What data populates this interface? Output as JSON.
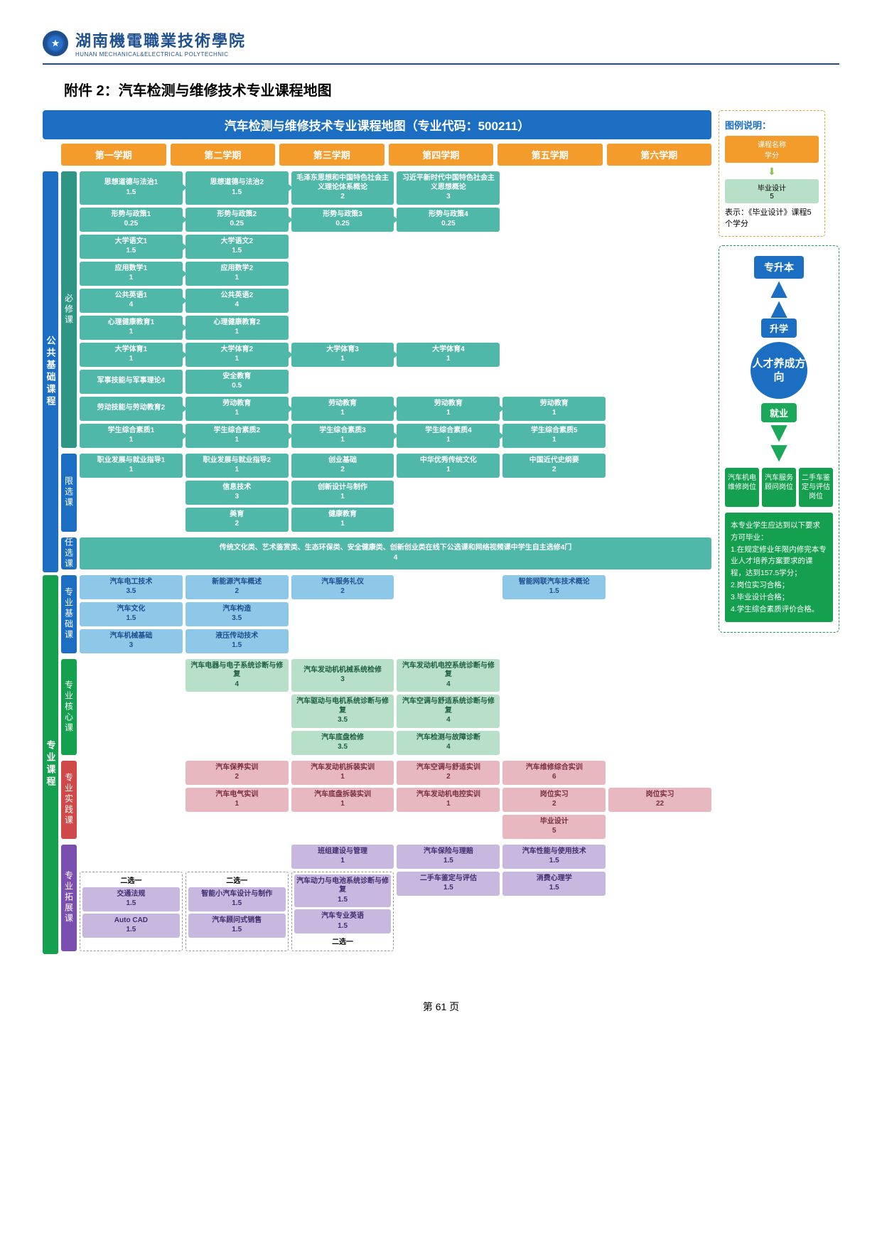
{
  "header": {
    "school_cn": "湖南機電職業技術學院",
    "school_en": "HUNAN MECHANICAL&ELECTRICAL POLYTECHNIC"
  },
  "doc_title": "附件 2：汽车检测与维修技术专业课程地图",
  "map_title": "汽车检测与维修技术专业课程地图（专业代码：500211）",
  "semesters": [
    "第一学期",
    "第二学期",
    "第三学期",
    "第四学期",
    "第五学期",
    "第六学期"
  ],
  "colors": {
    "blue": "#1b6ec2",
    "orange": "#f39c2c",
    "teal": "#4fb8a8",
    "teal_dark": "#2f9686",
    "lightblue": "#8ec8e8",
    "mint": "#b8e0c8",
    "pink": "#e8b8c0",
    "lilac": "#c8b8e0",
    "green": "#15a050",
    "green2": "#1ba85a",
    "purple": "#7a4fb0",
    "red": "#d04848"
  },
  "rails": {
    "public": "公共基础课程",
    "prof": "专业课程",
    "req": "必修课",
    "lim": "限选课",
    "opt": "任选课",
    "base": "专业基础课",
    "core": "专业核心课",
    "prac": "专业实践课",
    "ext": "专业拓展课"
  },
  "required": [
    [
      {
        "n": "思想道德与法治1",
        "c": "1.5",
        "a": 1
      },
      {
        "n": "思想道德与法治2",
        "c": "1.5",
        "a": 1
      },
      {
        "n": "毛泽东思想和中国特色社会主义理论体系概论",
        "c": "2"
      },
      {
        "n": "习近平新时代中国特色社会主义思想概论",
        "c": "3"
      },
      null,
      null
    ],
    [
      {
        "n": "形势与政策1",
        "c": "0.25",
        "a": 1
      },
      {
        "n": "形势与政策2",
        "c": "0.25",
        "a": 1
      },
      {
        "n": "形势与政策3",
        "c": "0.25",
        "a": 1
      },
      {
        "n": "形势与政策4",
        "c": "0.25"
      },
      null,
      null
    ],
    [
      {
        "n": "大学语文1",
        "c": "1.5",
        "a": 1
      },
      {
        "n": "大学语文2",
        "c": "1.5"
      },
      null,
      null,
      null,
      null
    ],
    [
      {
        "n": "应用数学1",
        "c": "1",
        "a": 1
      },
      {
        "n": "应用数学2",
        "c": "1"
      },
      null,
      null,
      null,
      null
    ],
    [
      {
        "n": "公共英语1",
        "c": "4",
        "a": 1
      },
      {
        "n": "公共英语2",
        "c": "4"
      },
      null,
      null,
      null,
      null
    ],
    [
      {
        "n": "心理健康教育1",
        "c": "1",
        "a": 1
      },
      {
        "n": "心理健康教育2",
        "c": "1"
      },
      null,
      null,
      null,
      null
    ],
    [
      {
        "n": "大学体育1",
        "c": "1",
        "a": 1
      },
      {
        "n": "大学体育2",
        "c": "1",
        "a": 1
      },
      {
        "n": "大学体育3",
        "c": "1",
        "a": 1
      },
      {
        "n": "大学体育4",
        "c": "1"
      },
      null,
      null
    ],
    [
      {
        "n": "军事技能与军事理论4",
        "c": ""
      },
      {
        "n": "安全教育",
        "c": "0.5"
      },
      null,
      null,
      null,
      null
    ],
    [
      {
        "n": "劳动技能与劳动教育2",
        "c": "",
        "a": 1
      },
      {
        "n": "劳动教育",
        "c": "1",
        "a": 1
      },
      {
        "n": "劳动教育",
        "c": "1",
        "a": 1
      },
      {
        "n": "劳动教育",
        "c": "1",
        "a": 1
      },
      {
        "n": "劳动教育",
        "c": "1"
      },
      null
    ],
    [
      {
        "n": "学生综合素质1",
        "c": "1",
        "a": 1
      },
      {
        "n": "学生综合素质2",
        "c": "1",
        "a": 1
      },
      {
        "n": "学生综合素质3",
        "c": "1",
        "a": 1
      },
      {
        "n": "学生综合素质4",
        "c": "1",
        "a": 1
      },
      {
        "n": "学生综合素质5",
        "c": "1"
      },
      null
    ]
  ],
  "limited": [
    [
      {
        "n": "职业发展与就业指导1",
        "c": "1"
      },
      {
        "n": "职业发展与就业指导2",
        "c": "1"
      },
      {
        "n": "创业基础",
        "c": "2"
      },
      {
        "n": "中华优秀传统文化",
        "c": "1"
      },
      {
        "n": "中国近代史纲要",
        "c": "2"
      },
      null
    ],
    [
      null,
      {
        "n": "信息技术",
        "c": "3"
      },
      {
        "n": "创新设计与制作",
        "c": "1"
      },
      null,
      null,
      null
    ],
    [
      null,
      {
        "n": "美育",
        "c": "2"
      },
      {
        "n": "健康教育",
        "c": "1"
      },
      null,
      null,
      null
    ]
  ],
  "optional_text": "传统文化类、艺术鉴赏类、生态环保类、安全健康类、创新创业类在线下公选课和网络视频课中学生自主选修4门",
  "optional_credit": "4",
  "prof_base": [
    [
      {
        "n": "汽车电工技术",
        "c": "3.5"
      },
      {
        "n": "新能源汽车概述",
        "c": "2"
      },
      {
        "n": "汽车服务礼仪",
        "c": "2"
      },
      null,
      {
        "n": "智能网联汽车技术概论",
        "c": "1.5"
      },
      null
    ],
    [
      {
        "n": "汽车文化",
        "c": "1.5"
      },
      {
        "n": "汽车构造",
        "c": "3.5"
      },
      null,
      null,
      null,
      null
    ],
    [
      {
        "n": "汽车机械基础",
        "c": "3"
      },
      {
        "n": "液压传动技术",
        "c": "1.5"
      },
      null,
      null,
      null,
      null
    ]
  ],
  "prof_core": [
    [
      null,
      {
        "n": "汽车电器与电子系统诊断与修复",
        "c": "4"
      },
      {
        "n": "汽车发动机机械系统检修",
        "c": "3"
      },
      {
        "n": "汽车发动机电控系统诊断与修复",
        "c": "4"
      },
      null,
      null
    ],
    [
      null,
      null,
      {
        "n": "汽车驱动与电机系统诊断与修复",
        "c": "3.5"
      },
      {
        "n": "汽车空调与舒适系统诊断与修复",
        "c": "4"
      },
      null,
      null
    ],
    [
      null,
      null,
      {
        "n": "汽车底盘检修",
        "c": "3.5"
      },
      {
        "n": "汽车检测与故障诊断",
        "c": "4"
      },
      null,
      null
    ]
  ],
  "prof_prac": [
    [
      null,
      {
        "n": "汽车保养实训",
        "c": "2"
      },
      {
        "n": "汽车发动机拆装实训",
        "c": "1"
      },
      {
        "n": "汽车空调与舒适实训",
        "c": "2"
      },
      {
        "n": "汽车维修综合实训",
        "c": "6"
      },
      null
    ],
    [
      null,
      {
        "n": "汽车电气实训",
        "c": "1"
      },
      {
        "n": "汽车底盘拆装实训",
        "c": "1"
      },
      {
        "n": "汽车发动机电控实训",
        "c": "1"
      },
      {
        "n": "岗位实习",
        "c": "2"
      },
      {
        "n": "岗位实习",
        "c": "22"
      }
    ],
    [
      null,
      null,
      null,
      null,
      {
        "n": "毕业设计",
        "c": "5"
      },
      null
    ]
  ],
  "prof_ext_top": [
    [
      null,
      null,
      {
        "n": "班组建设与管理",
        "c": "1"
      },
      {
        "n": "汽车保险与理赔",
        "c": "1.5"
      },
      {
        "n": "汽车性能与使用技术",
        "c": "1.5"
      },
      null
    ]
  ],
  "prof_ext_choice": {
    "label": "二选一",
    "col1": [
      {
        "n": "交通法规",
        "c": "1.5"
      },
      {
        "n": "Auto CAD",
        "c": "1.5"
      }
    ],
    "col2": [
      {
        "n": "智能小汽车设计与制作",
        "c": "1.5"
      },
      {
        "n": "汽车顾问式销售",
        "c": "1.5"
      }
    ],
    "col3": [
      {
        "n": "汽车动力与电池系统诊断与修复",
        "c": "1.5"
      },
      {
        "n": "汽车专业英语",
        "c": "1.5"
      }
    ],
    "col3_label": "二选一",
    "col4": [
      {
        "n": "二手车鉴定与评估",
        "c": "1.5"
      }
    ],
    "col5": [
      {
        "n": "消费心理学",
        "c": "1.5"
      }
    ]
  },
  "legend": {
    "title": "图例说明：",
    "item1_n": "课程名称",
    "item1_c": "学分",
    "item2_n": "毕业设计",
    "item2_c": "5",
    "text": "表示：《毕业设计》课程5个学分"
  },
  "direction": {
    "top": "专升本",
    "up": "升学",
    "center": "人才养成方向",
    "down": "就业",
    "jobs": [
      "汽车机电维修岗位",
      "汽车服务顾问岗位",
      "二手车鉴定与评估岗位"
    ],
    "grad": "本专业学生应达到以下要求方可毕业：\n1.在规定修业年限内修完本专业人才培养方案要求的课程，达到157.5学分；\n2.岗位实习合格；\n3.毕业设计合格；\n4.学生综合素质评价合格。"
  },
  "footer": "第 61 页"
}
